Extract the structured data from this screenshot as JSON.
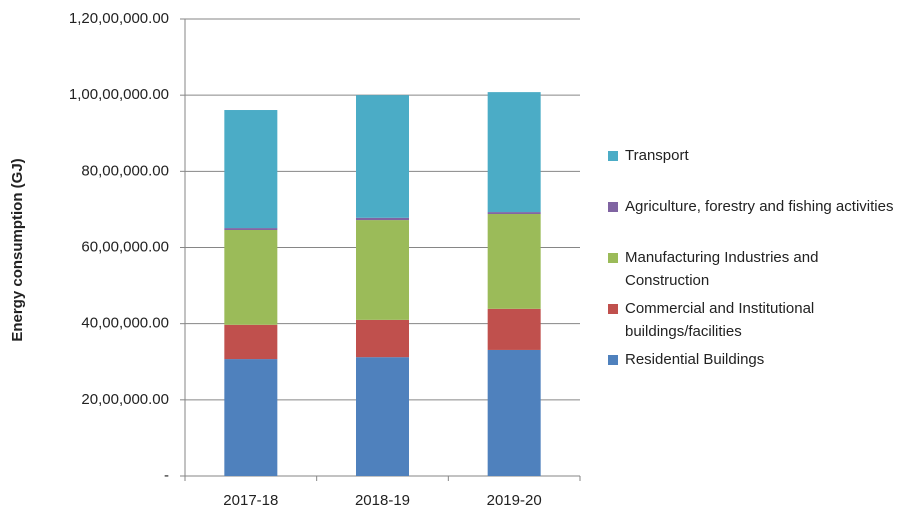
{
  "chart_data": {
    "type": "stacked_bar",
    "y_axis_label": "Energy consumption (GJ)",
    "categories": [
      "2017-18",
      "2018-19",
      "2019-20"
    ],
    "series": [
      {
        "name": "Residential Buildings",
        "color": "#4f81bd",
        "values": [
          3070000,
          3120000,
          3310000
        ]
      },
      {
        "name": "Commercial and Institutional buildings/facilities",
        "color": "#c0504d",
        "values": [
          900000,
          980000,
          1080000
        ]
      },
      {
        "name": "Manufacturing Industries and Construction",
        "color": "#9bbb59",
        "values": [
          2490000,
          2620000,
          2490000
        ]
      },
      {
        "name": "Agriculture, forestry and fishing activities",
        "color": "#8064a2",
        "values": [
          50000,
          60000,
          50000
        ]
      },
      {
        "name": "Transport",
        "color": "#4bacc6",
        "values": [
          3100000,
          3220000,
          3150000
        ]
      }
    ],
    "ylim": [
      0,
      12000000
    ],
    "yticks": [
      {
        "value": 0,
        "label": "-"
      },
      {
        "value": 2000000,
        "label": "20,00,000.00"
      },
      {
        "value": 4000000,
        "label": "40,00,000.00"
      },
      {
        "value": 6000000,
        "label": "60,00,000.00"
      },
      {
        "value": 8000000,
        "label": "80,00,000.00"
      },
      {
        "value": 10000000,
        "label": "1,00,00,000.00"
      },
      {
        "value": 12000000,
        "label": "1,20,00,000.00"
      }
    ],
    "grid": true,
    "legend": "right"
  }
}
